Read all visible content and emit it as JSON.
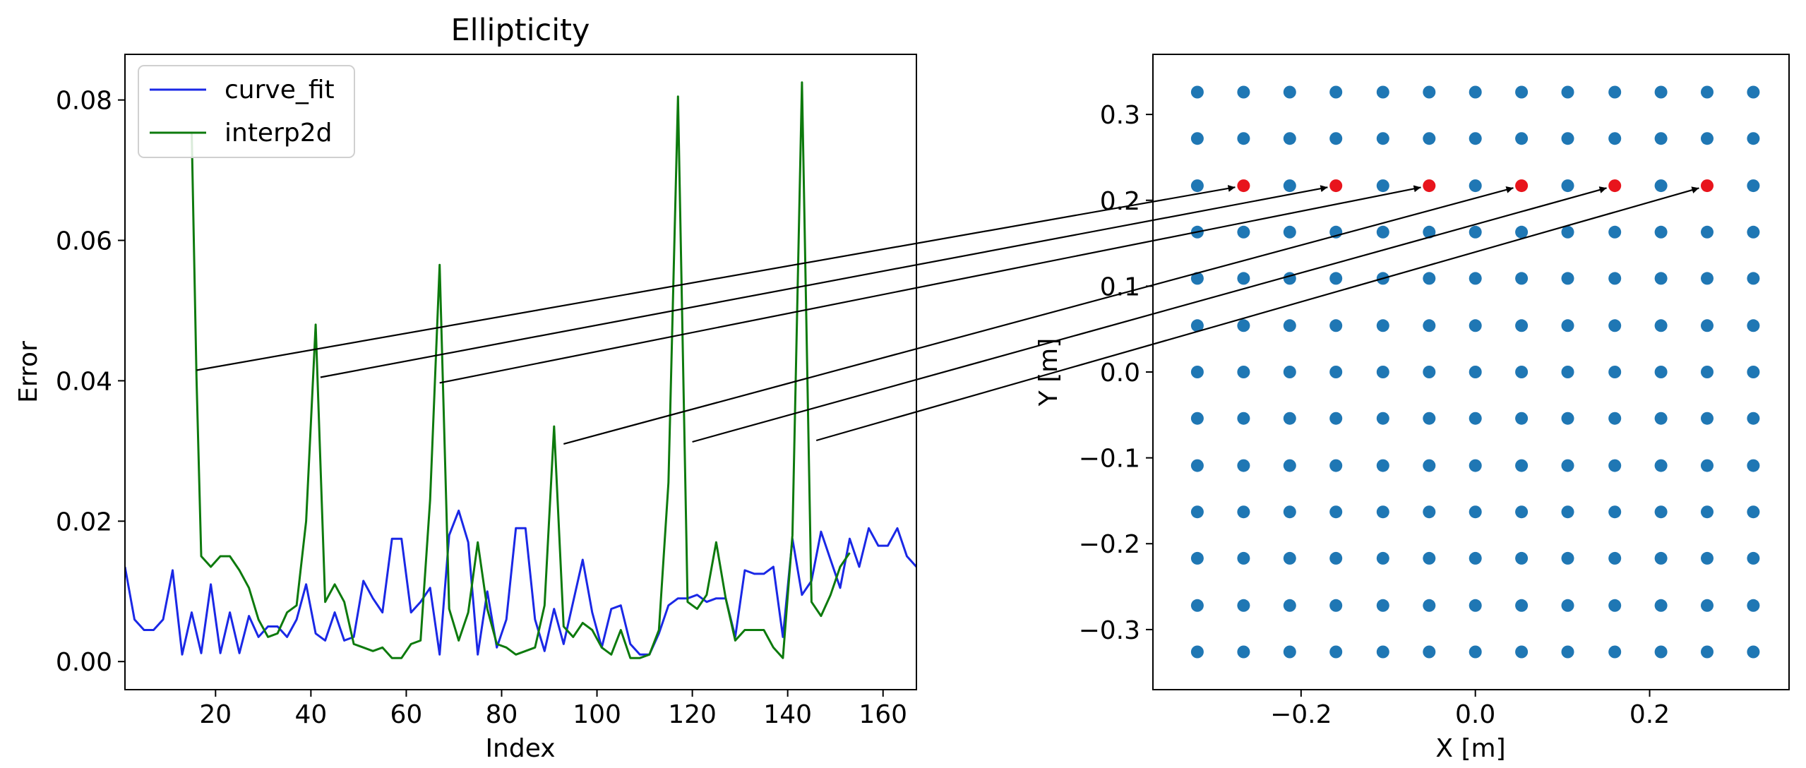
{
  "chart_data": [
    {
      "type": "line",
      "title": "Ellipticity",
      "xlabel": "Index",
      "ylabel": "Error",
      "xlim": [
        1,
        167
      ],
      "ylim": [
        -0.004,
        0.0865
      ],
      "xticks": [
        20,
        40,
        60,
        80,
        100,
        120,
        140,
        160
      ],
      "xtick_labels": [
        "20",
        "40",
        "60",
        "80",
        "100",
        "120",
        "140",
        "160"
      ],
      "yticks": [
        0.0,
        0.02,
        0.04,
        0.06,
        0.08
      ],
      "ytick_labels": [
        "0.00",
        "0.02",
        "0.04",
        "0.06",
        "0.08"
      ],
      "legend_position": "upper-left",
      "grid": false,
      "series": [
        {
          "name": "curve_fit",
          "color": "#1a28e6",
          "x": [
            1,
            3,
            5,
            7,
            9,
            11,
            13,
            15,
            17,
            19,
            21,
            23,
            25,
            27,
            29,
            31,
            33,
            35,
            37,
            39,
            41,
            43,
            45,
            47,
            49,
            51,
            53,
            55,
            57,
            59,
            61,
            63,
            65,
            67,
            69,
            71,
            73,
            75,
            77,
            79,
            81,
            83,
            85,
            87,
            89,
            91,
            93,
            95,
            97,
            99,
            101,
            103,
            105,
            107,
            109,
            111,
            113,
            115,
            117,
            119,
            121,
            123,
            125,
            127,
            129,
            131,
            133,
            135,
            137,
            139,
            141,
            143,
            145,
            147,
            149,
            151,
            153,
            155,
            157,
            159,
            161,
            163,
            165,
            167
          ],
          "y": [
            0.0135,
            0.006,
            0.0045,
            0.0045,
            0.006,
            0.013,
            0.001,
            0.007,
            0.0012,
            0.011,
            0.0012,
            0.007,
            0.0012,
            0.0065,
            0.0035,
            0.005,
            0.005,
            0.0035,
            0.006,
            0.011,
            0.004,
            0.003,
            0.007,
            0.003,
            0.0035,
            0.0115,
            0.009,
            0.007,
            0.0175,
            0.0175,
            0.007,
            0.0085,
            0.0105,
            0.001,
            0.018,
            0.0215,
            0.017,
            0.001,
            0.01,
            0.002,
            0.006,
            0.019,
            0.019,
            0.006,
            0.0015,
            0.0075,
            0.0025,
            0.0085,
            0.0145,
            0.007,
            0.002,
            0.0075,
            0.008,
            0.0025,
            0.001,
            0.001,
            0.004,
            0.008,
            0.009,
            0.009,
            0.0095,
            0.0085,
            0.009,
            0.009,
            0.0035,
            0.013,
            0.0125,
            0.0125,
            0.0135,
            0.0035,
            0.0175,
            0.0095,
            0.0115,
            0.0185,
            0.0145,
            0.0105,
            0.0175,
            0.0135,
            0.019,
            0.0165,
            0.0165,
            0.019,
            0.015,
            0.0135
          ]
        },
        {
          "name": "interp2d",
          "color": "#0d7a0d",
          "x": [
            15,
            16,
            17,
            19,
            21,
            23,
            25,
            27,
            29,
            31,
            33,
            35,
            37,
            39,
            41,
            43,
            45,
            47,
            49,
            51,
            53,
            55,
            57,
            59,
            61,
            63,
            65,
            67,
            69,
            71,
            73,
            75,
            77,
            79,
            81,
            83,
            85,
            87,
            89,
            91,
            93,
            95,
            97,
            99,
            101,
            103,
            105,
            107,
            109,
            111,
            113,
            115,
            117,
            119,
            121,
            123,
            125,
            127,
            129,
            131,
            133,
            135,
            137,
            139,
            141,
            143,
            145,
            147,
            149,
            151,
            153
          ],
          "y": [
            0.0755,
            0.0405,
            0.015,
            0.0135,
            0.015,
            0.015,
            0.013,
            0.0105,
            0.006,
            0.0035,
            0.004,
            0.007,
            0.008,
            0.02,
            0.048,
            0.0085,
            0.011,
            0.0085,
            0.0025,
            0.002,
            0.0015,
            0.002,
            0.0005,
            0.0005,
            0.0025,
            0.003,
            0.023,
            0.0565,
            0.0075,
            0.003,
            0.007,
            0.017,
            0.0075,
            0.0025,
            0.002,
            0.001,
            0.0015,
            0.002,
            0.008,
            0.0335,
            0.005,
            0.0035,
            0.0055,
            0.0045,
            0.002,
            0.001,
            0.0045,
            0.0005,
            0.0005,
            0.001,
            0.0045,
            0.0255,
            0.0805,
            0.0085,
            0.0075,
            0.0095,
            0.017,
            0.009,
            0.003,
            0.0045,
            0.0045,
            0.0045,
            0.002,
            0.0005,
            0.018,
            0.0825,
            0.0085,
            0.0065,
            0.0095,
            0.0135,
            0.0155
          ]
        }
      ]
    },
    {
      "type": "scatter",
      "title": "",
      "xlabel": "X [m]",
      "ylabel": "Y [m]",
      "xlim": [
        -0.37,
        0.36
      ],
      "ylim": [
        -0.37,
        0.37
      ],
      "xticks": [
        -0.2,
        0.0,
        0.2
      ],
      "xtick_labels": [
        "−0.2",
        "0.0",
        "0.2"
      ],
      "yticks": [
        -0.3,
        -0.2,
        -0.1,
        0.0,
        0.1,
        0.2,
        0.3
      ],
      "ytick_labels": [
        "−0.3",
        "−0.2",
        "−0.1",
        "0.0",
        "0.1",
        "0.2",
        "0.3"
      ],
      "grid": false,
      "point_color": "#1f77b4",
      "highlight_color": "#e8141c",
      "grid_points": {
        "x_values": [
          -0.319,
          -0.266,
          -0.213,
          -0.16,
          -0.106,
          -0.053,
          0.0,
          0.053,
          0.106,
          0.16,
          0.213,
          0.266,
          0.319
        ],
        "y_values": [
          0.326,
          0.272,
          0.217,
          0.163,
          0.109,
          0.054,
          0.0,
          -0.054,
          -0.109,
          -0.163,
          -0.217,
          -0.272,
          -0.326
        ]
      },
      "highlighted_points": [
        {
          "x": -0.266,
          "y": 0.217,
          "source_index": 16,
          "source_error": 0.0415
        },
        {
          "x": -0.16,
          "y": 0.217,
          "source_index": 42,
          "source_error": 0.0405
        },
        {
          "x": -0.053,
          "y": 0.217,
          "source_index": 67,
          "source_error": 0.0397
        },
        {
          "x": 0.053,
          "y": 0.217,
          "source_index": 93,
          "source_error": 0.031
        },
        {
          "x": 0.16,
          "y": 0.217,
          "source_index": 120,
          "source_error": 0.0313
        },
        {
          "x": 0.266,
          "y": 0.217,
          "source_index": 146,
          "source_error": 0.0315
        }
      ]
    }
  ]
}
